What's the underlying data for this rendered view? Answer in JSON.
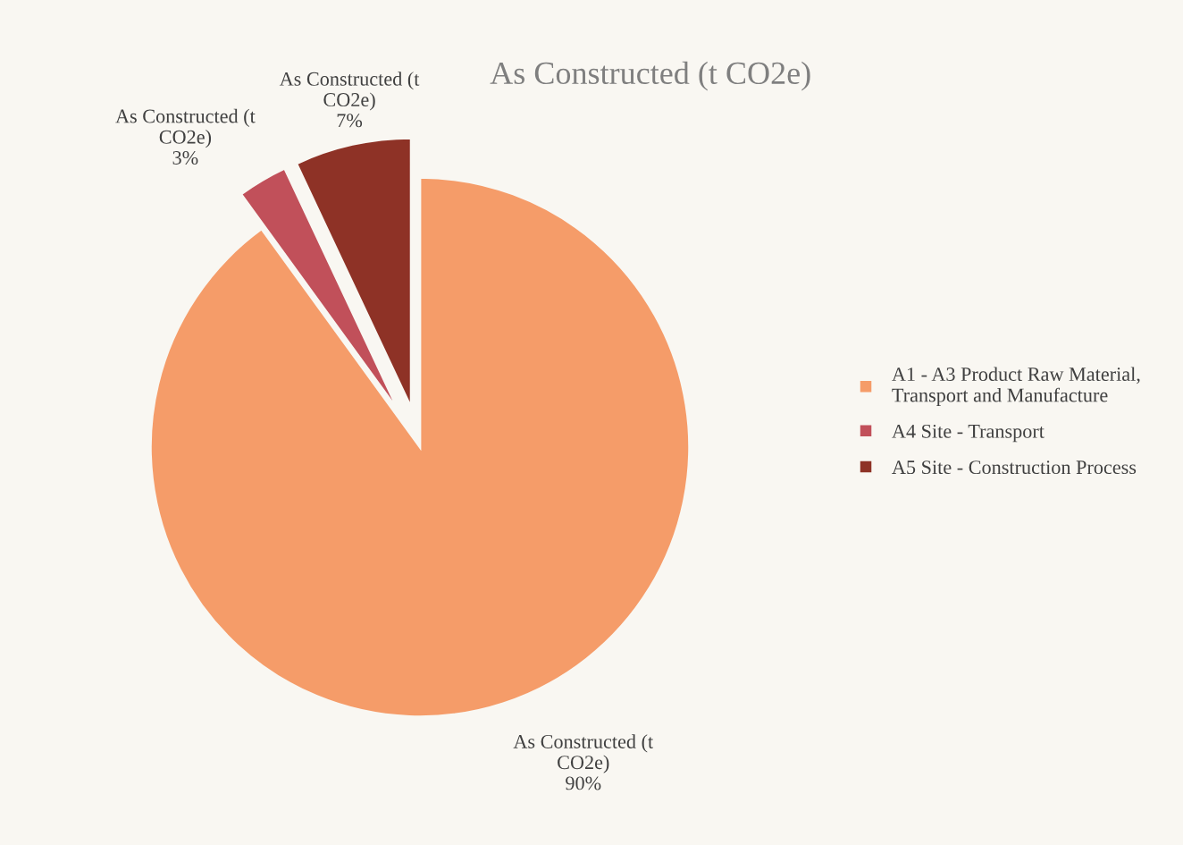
{
  "chart_data": {
    "type": "pie",
    "title": "As Constructed (t CO2e)",
    "categories": [
      "A1 - A3 Product Raw Material,\nTransport and Manufacture",
      "A4 Site - Transport",
      "A5 Site - Construction Process"
    ],
    "values": [
      90,
      3,
      7
    ],
    "colors": [
      "#f59c69",
      "#c1505a",
      "#8e3226"
    ],
    "value_labels": [
      "As Constructed (t\nCO2e)\n90%",
      "As Constructed (t\nCO2e)\n3%",
      "As Constructed (t\nCO2e)\n7%"
    ],
    "legend": "right"
  }
}
